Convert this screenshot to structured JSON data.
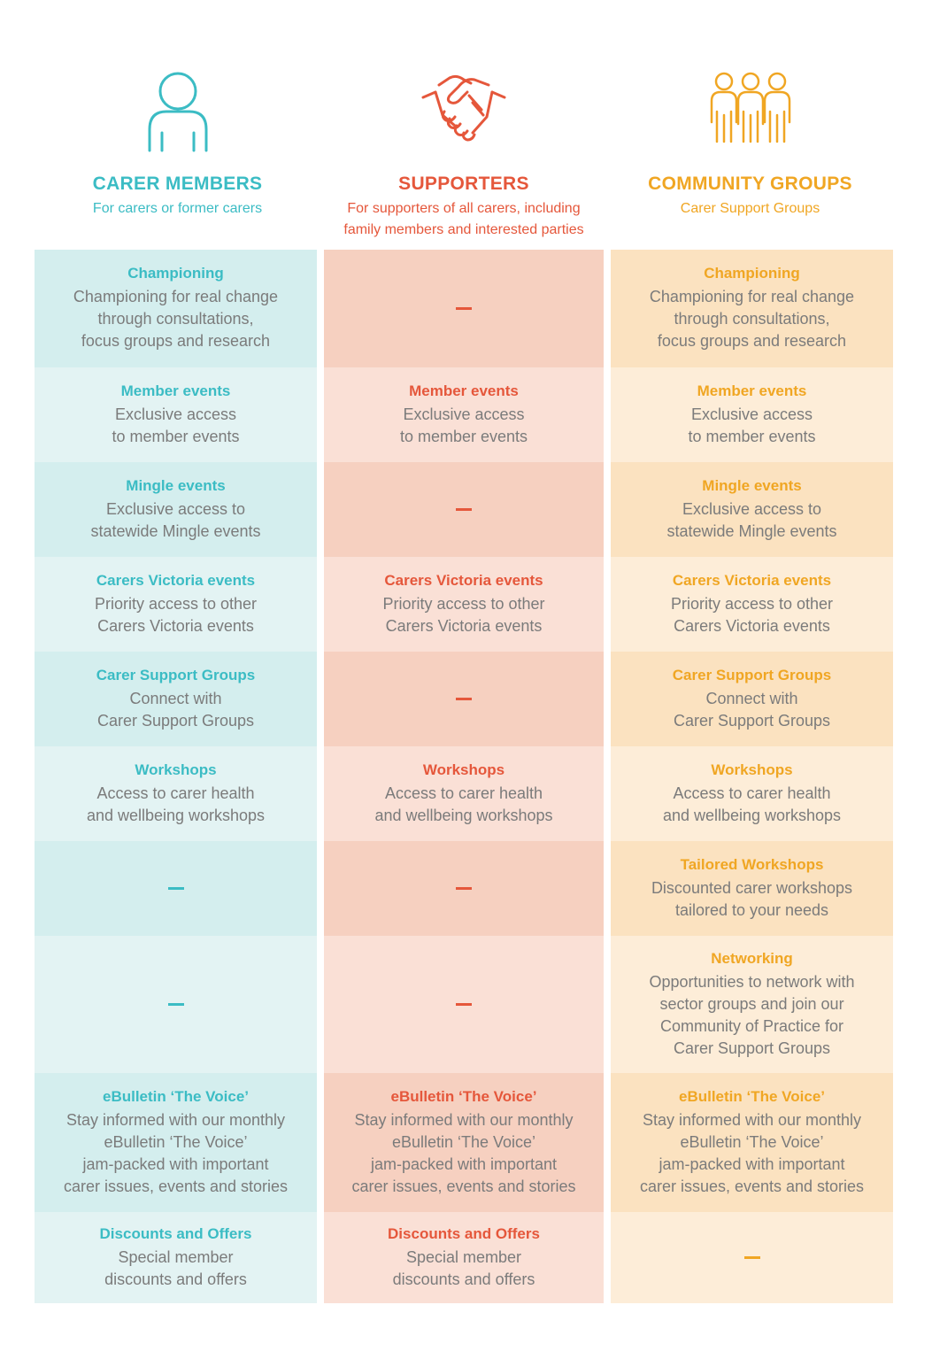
{
  "columns": [
    {
      "key": "carer",
      "icon": "person-icon",
      "title": "CARER MEMBERS",
      "subtitle": "For carers or former carers",
      "color": "#3bbcc4",
      "cells": [
        {
          "title": "Championing",
          "desc": "Championing for real change\nthrough consultations,\nfocus groups and research"
        },
        {
          "title": "Member events",
          "desc": "Exclusive access\nto member events"
        },
        {
          "title": "Mingle events",
          "desc": "Exclusive access to\nstatewide Mingle events"
        },
        {
          "title": "Carers Victoria events",
          "desc": "Priority access to other\nCarers Victoria events"
        },
        {
          "title": "Carer Support Groups",
          "desc": "Connect with\nCarer Support Groups"
        },
        {
          "title": "Workshops",
          "desc": "Access to carer health\nand wellbeing workshops"
        },
        {
          "title": "",
          "desc": ""
        },
        {
          "title": "",
          "desc": ""
        },
        {
          "title": "eBulletin ‘The Voice’",
          "desc": "Stay informed with our monthly\neBulletin ‘The Voice’\njam-packed with important\ncarer issues, events and stories"
        },
        {
          "title": "Discounts and Offers",
          "desc": "Special member\ndiscounts and offers"
        }
      ]
    },
    {
      "key": "supporter",
      "icon": "handshake-icon",
      "title": "SUPPORTERS",
      "subtitle": "For supporters of all carers, including\nfamily members and interested parties",
      "color": "#e5573b",
      "cells": [
        {
          "title": "",
          "desc": ""
        },
        {
          "title": "Member events",
          "desc": "Exclusive access\nto member events"
        },
        {
          "title": "",
          "desc": ""
        },
        {
          "title": "Carers Victoria events",
          "desc": "Priority access to other\nCarers Victoria events"
        },
        {
          "title": "",
          "desc": ""
        },
        {
          "title": "Workshops",
          "desc": "Access to carer health\nand wellbeing workshops"
        },
        {
          "title": "",
          "desc": ""
        },
        {
          "title": "",
          "desc": ""
        },
        {
          "title": "eBulletin ‘The Voice’",
          "desc": "Stay informed with our monthly\neBulletin ‘The Voice’\njam-packed with important\ncarer issues, events and stories"
        },
        {
          "title": "Discounts and Offers",
          "desc": "Special member\ndiscounts and offers"
        }
      ]
    },
    {
      "key": "community",
      "icon": "group-icon",
      "title": "COMMUNITY GROUPS",
      "subtitle": "Carer Support Groups",
      "color": "#f0a623",
      "cells": [
        {
          "title": "Championing",
          "desc": "Championing for real change\nthrough consultations,\nfocus groups and research"
        },
        {
          "title": "Member events",
          "desc": "Exclusive access\nto member events"
        },
        {
          "title": "Mingle events",
          "desc": "Exclusive access to\nstatewide Mingle events"
        },
        {
          "title": "Carers Victoria events",
          "desc": "Priority access to other\nCarers Victoria events"
        },
        {
          "title": "Carer Support Groups",
          "desc": "Connect with\nCarer Support Groups"
        },
        {
          "title": "Workshops",
          "desc": "Access to carer health\nand wellbeing workshops"
        },
        {
          "title": "Tailored Workshops",
          "desc": "Discounted carer workshops\ntailored to your needs"
        },
        {
          "title": "Networking",
          "desc": "Opportunities to network with\nsector groups and join our\nCommunity of Practice for\nCarer Support Groups"
        },
        {
          "title": "eBulletin ‘The Voice’",
          "desc": "Stay informed with our monthly\neBulletin ‘The Voice’\njam-packed with important\ncarer issues, events and stories"
        },
        {
          "title": "",
          "desc": ""
        }
      ]
    }
  ]
}
